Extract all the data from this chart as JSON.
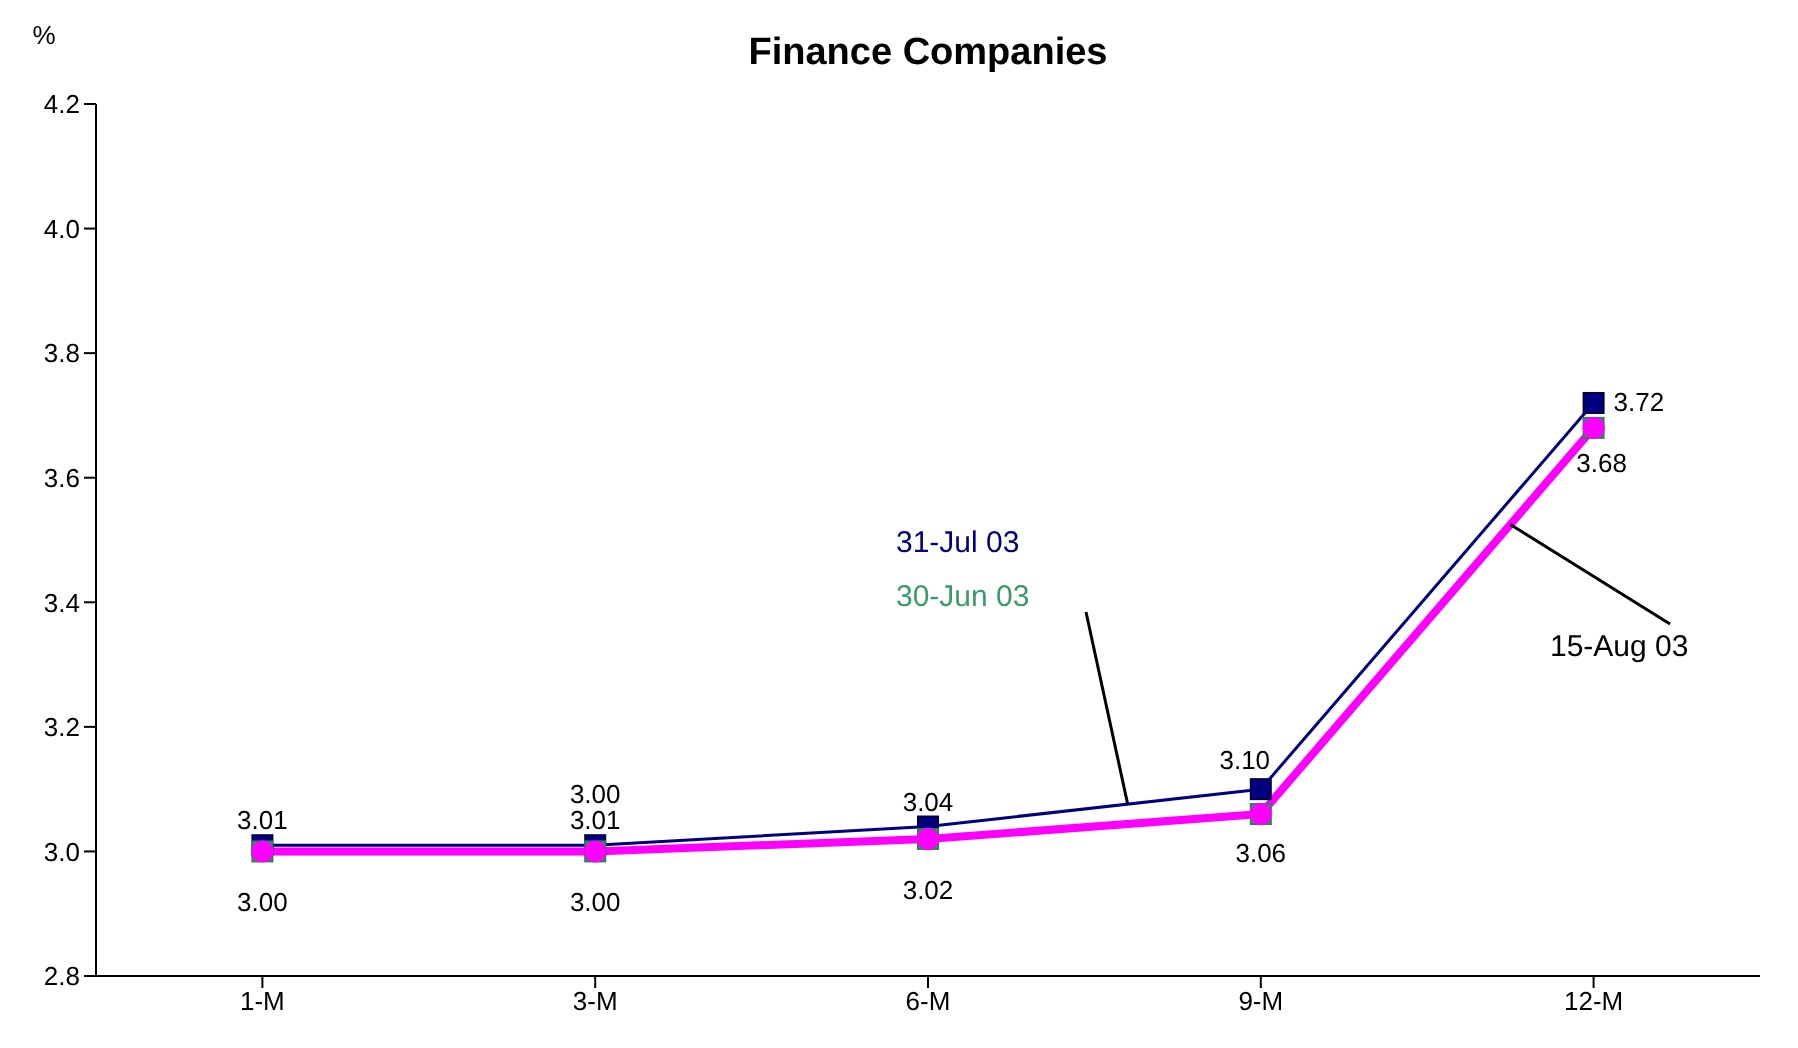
{
  "chart_data": {
    "type": "line",
    "title": "Finance Companies",
    "ylabel": "%",
    "categories": [
      "1-M",
      "3-M",
      "6-M",
      "9-M",
      "12-M"
    ],
    "series": [
      {
        "name": "31-Jul 03",
        "color": "#000080",
        "marker": "square",
        "values": [
          3.01,
          3.01,
          3.04,
          3.1,
          3.72
        ],
        "value_labels": [
          "3.01",
          "3.01",
          "3.04",
          "3.10",
          "3.72"
        ]
      },
      {
        "name": "30-Jun 03",
        "type": "scatter",
        "color": "#3a9a6a",
        "marker": "square",
        "values": [
          3.0,
          3.0,
          3.02,
          3.06,
          3.68
        ],
        "value_labels": [
          "3.00",
          "3.00",
          "3.02",
          "3.06",
          "3.68"
        ]
      },
      {
        "name": "15-Aug 03",
        "color": "#ff00ff",
        "marker": "circle",
        "values": [
          3.0,
          3.0,
          3.02,
          3.06,
          3.68
        ],
        "value_labels": [
          null,
          "3.00",
          null,
          null,
          null
        ]
      }
    ],
    "ylim": [
      2.8,
      4.2
    ],
    "yticks": [
      {
        "value": 2.8,
        "label": "2.8"
      },
      {
        "value": 3,
        "label": "3.0"
      },
      {
        "value": 3.2,
        "label": "3.2"
      },
      {
        "value": 3.4,
        "label": "3.4"
      },
      {
        "value": 3.6,
        "label": "3.6"
      },
      {
        "value": 3.8,
        "label": "3.8"
      },
      {
        "value": 4,
        "label": "4.0"
      },
      {
        "value": 4.2,
        "label": "4.2"
      }
    ],
    "grid": false,
    "legend": false,
    "line_style": "solid"
  }
}
